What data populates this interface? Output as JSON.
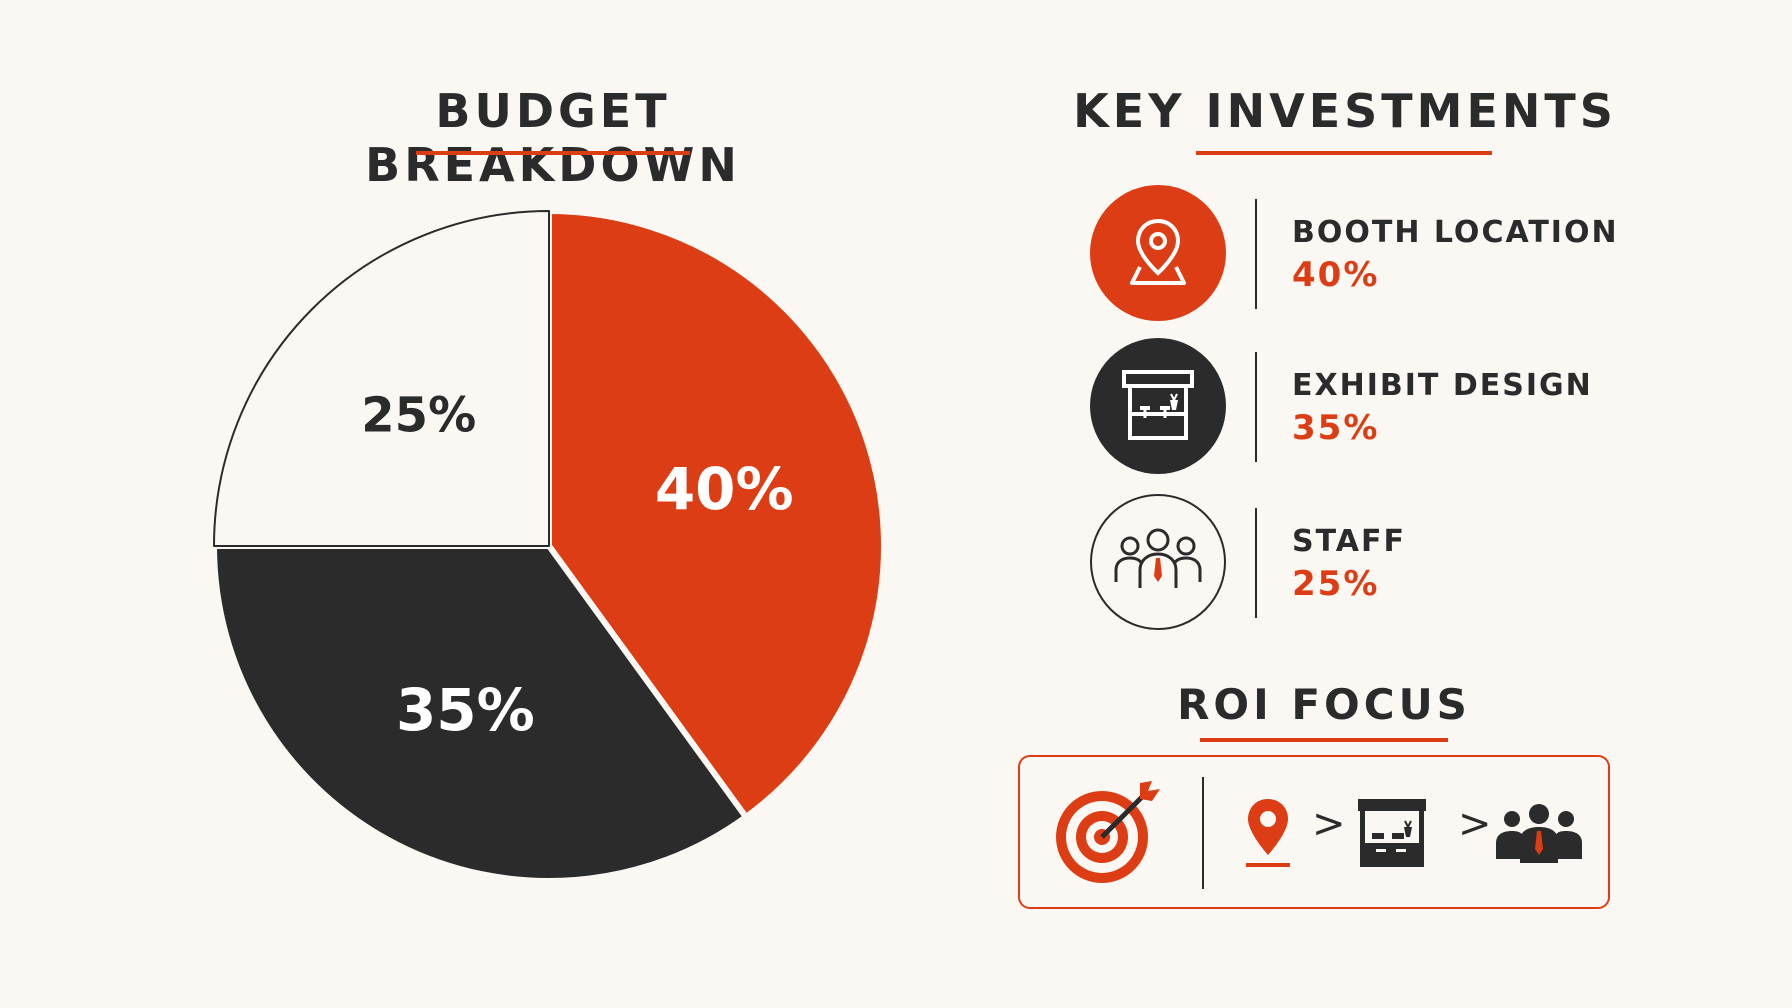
{
  "budget": {
    "title": "BUDGET BREAKDOWN"
  },
  "chart_data": {
    "type": "pie",
    "title": "BUDGET BREAKDOWN",
    "slices": [
      {
        "label": "40%",
        "value": 40,
        "color": "#dc3d14",
        "text_color": "#ffffff"
      },
      {
        "label": "35%",
        "value": 35,
        "color": "#2b2b2b",
        "text_color": "#ffffff"
      },
      {
        "label": "25%",
        "value": 25,
        "color": "#fbf8f3",
        "text_color": "#2b2b2b"
      }
    ],
    "start_angle_deg": 0,
    "direction": "clockwise",
    "legend": "none"
  },
  "investments": {
    "title": "KEY INVESTMENTS",
    "items": [
      {
        "label": "BOOTH LOCATION",
        "value": "40%",
        "icon": "map-pin-icon"
      },
      {
        "label": "EXHIBIT DESIGN",
        "value": "35%",
        "icon": "booth-icon"
      },
      {
        "label": "STAFF",
        "value": "25%",
        "icon": "staff-group-icon"
      }
    ]
  },
  "roi": {
    "title": "ROI FOCUS",
    "icons": [
      "target-icon",
      "map-pin-icon",
      "booth-icon",
      "staff-group-icon"
    ],
    "separator": ">"
  },
  "colors": {
    "accent": "#dc3d14",
    "dark": "#2b2b2b",
    "background": "#fbf8f3"
  }
}
